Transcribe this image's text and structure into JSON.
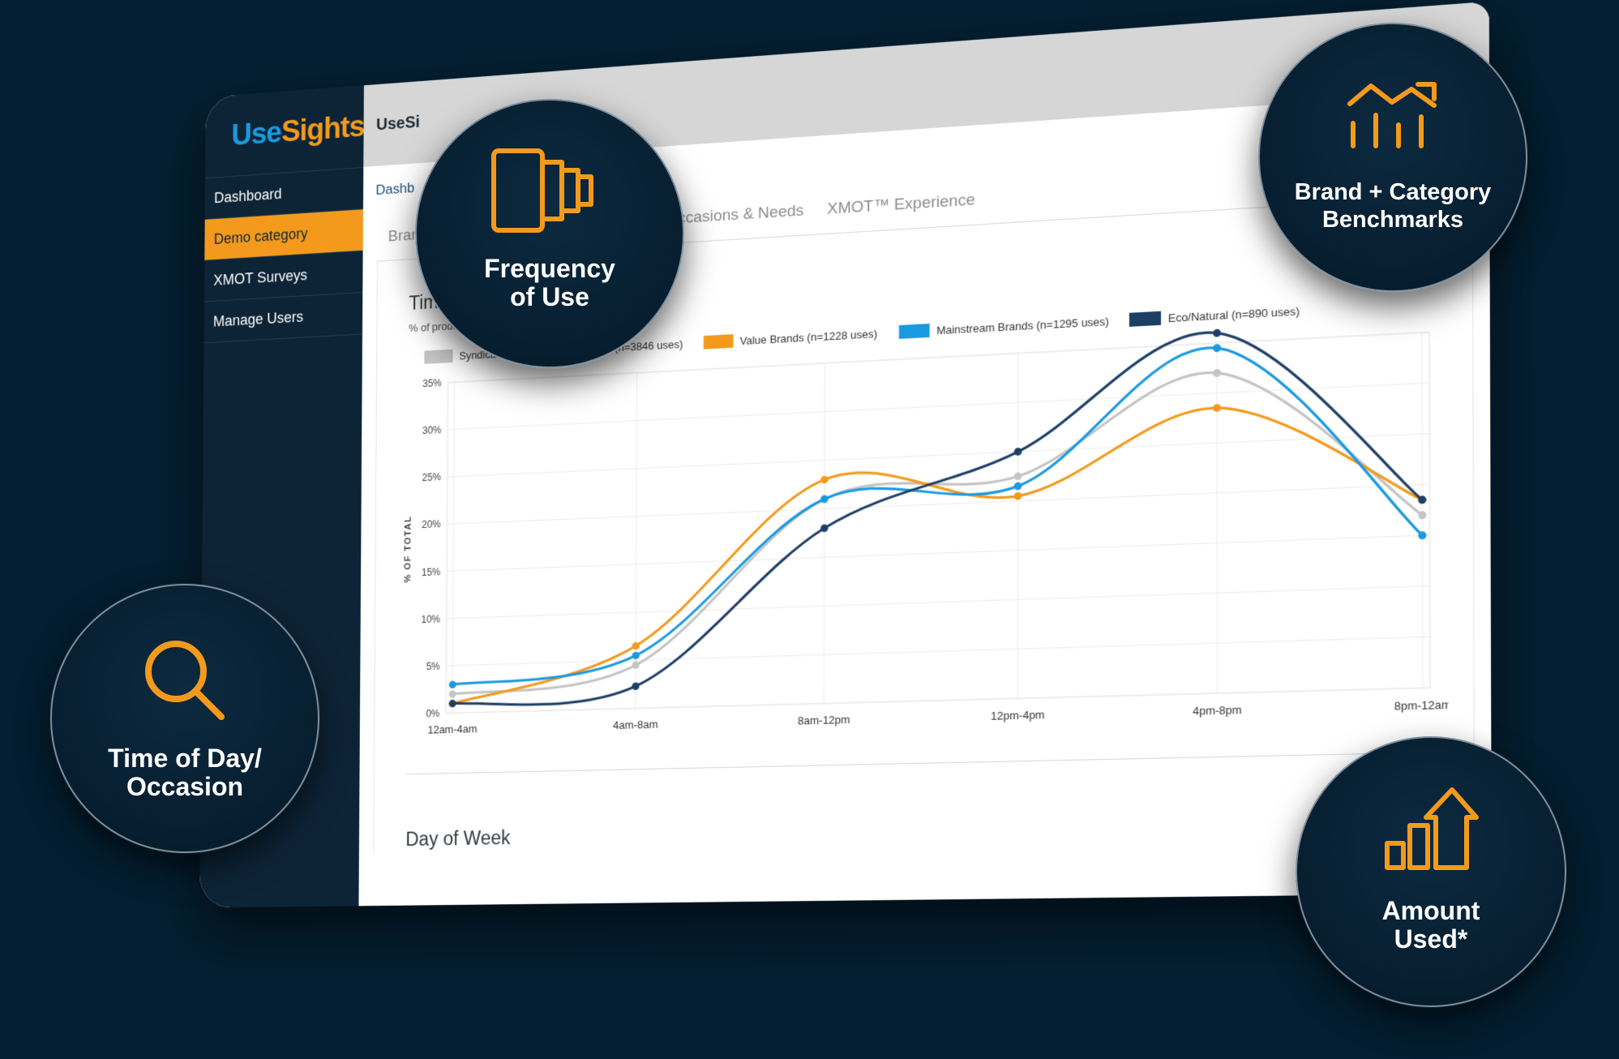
{
  "app": {
    "logo_part1": "Use",
    "logo_part2": "Sights",
    "window_title": "UseSi",
    "breadcrumb": "Dashb"
  },
  "sidebar": {
    "items": [
      {
        "label": "Dashboard",
        "active": false
      },
      {
        "label": "Demo category",
        "active": true
      },
      {
        "label": "XMOT Surveys",
        "active": false
      },
      {
        "label": "Manage Users",
        "active": false
      }
    ]
  },
  "tabs": [
    {
      "label": "Brand Sc"
    },
    {
      "label": "Occasions & Needs"
    },
    {
      "label": "XMOT™ Experience"
    }
  ],
  "chart_section": {
    "title": "Time of Day",
    "subtitle": "% of product uses by time of day",
    "next_section_title": "Day of Week"
  },
  "chart_data": {
    "type": "line",
    "title": "Time of Day",
    "subtitle": "% of product uses by time of day",
    "ylabel": "% OF TOTAL",
    "xlabel": "",
    "categories": [
      "12am-4am",
      "4am-8am",
      "8am-12pm",
      "12pm-4pm",
      "4pm-8pm",
      "8pm-12am"
    ],
    "y_ticks": [
      "0%",
      "5%",
      "10%",
      "15%",
      "20%",
      "25%",
      "30%",
      "35%"
    ],
    "ylim": [
      0,
      35
    ],
    "grid": true,
    "legend_position": "top",
    "series": [
      {
        "name": "Syndicated Category Benchmark (n=3846 uses)",
        "color": "#c4c4c4",
        "values": [
          2,
          4.5,
          21,
          22.5,
          32,
          17
        ]
      },
      {
        "name": "Value Brands (n=1228 uses)",
        "color": "#f39a1c",
        "values": [
          1,
          6.5,
          23,
          20.5,
          28.5,
          18.5
        ]
      },
      {
        "name": "Mainstream Brands (n=1295 uses)",
        "color": "#1a9ae0",
        "values": [
          3,
          5.5,
          21,
          21.5,
          34.5,
          15
        ]
      },
      {
        "name": "Eco/Natural (n=890 uses)",
        "color": "#1d3f66",
        "values": [
          1,
          2.3,
          18,
          25,
          36,
          18.5
        ]
      }
    ]
  },
  "features": [
    {
      "id": "frequency",
      "line1": "Frequency",
      "line2": "of Use",
      "icon": "stacked-cups-icon"
    },
    {
      "id": "benchmarks",
      "line1": "Brand + Category",
      "line2": "Benchmarks",
      "icon": "bar-trend-icon"
    },
    {
      "id": "time-of-day",
      "line1": "Time of Day/",
      "line2": "Occasion",
      "icon": "search-icon"
    },
    {
      "id": "amount",
      "line1": "Amount",
      "line2": "Used*",
      "icon": "growth-arrow-icon"
    }
  ],
  "colors": {
    "background": "#031e30",
    "accent": "#f39a1c",
    "brand_blue": "#1a9ae0",
    "sidebar": "#0d2437"
  }
}
